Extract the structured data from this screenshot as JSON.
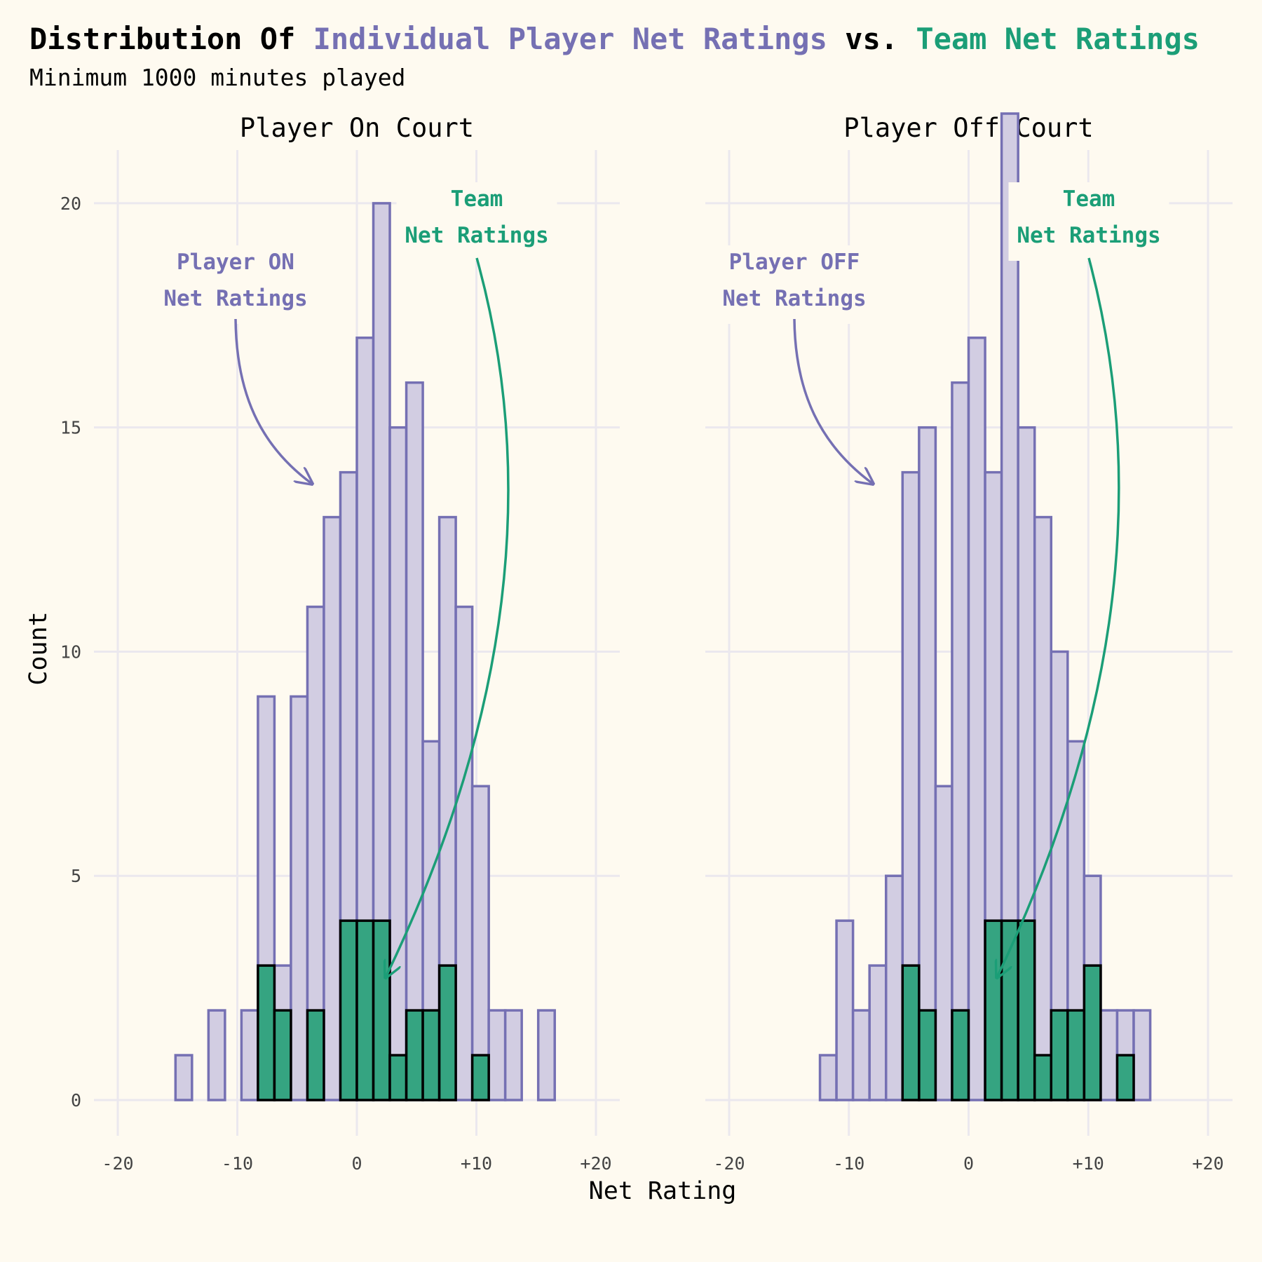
{
  "title": {
    "part1": "Distribution Of ",
    "part2": "Individual Player Net Ratings",
    "part3": " vs. ",
    "part4": "Team Net Ratings"
  },
  "subtitle": "Minimum 1000 minutes played",
  "colors": {
    "player_fill": "#d2cde2",
    "player_stroke": "#7570b3",
    "team_fill": "#35a481",
    "team_text": "#1b9e77",
    "background": "#fefaf0",
    "grid": "#ebe8ee"
  },
  "chart_data": [
    {
      "type": "histogram",
      "panel": "Player On Court",
      "xlabel": "Net Rating",
      "ylabel": "Count",
      "xlim": [
        -20,
        20
      ],
      "ylim": [
        0,
        22
      ],
      "x_ticks": [
        "-20",
        "-10",
        "0",
        "+10",
        "+20"
      ],
      "y_ticks": [
        "0",
        "5",
        "10",
        "15",
        "20"
      ],
      "grid": true,
      "bin_width": 1.379,
      "bin_centers": [
        -20,
        -18.621,
        -17.241,
        -15.862,
        -14.483,
        -13.103,
        -11.724,
        -10.345,
        -8.966,
        -7.586,
        -6.207,
        -4.828,
        -3.448,
        -2.069,
        -0.69,
        0.69,
        2.069,
        3.448,
        4.828,
        6.207,
        7.586,
        8.966,
        10.345,
        11.724,
        13.103,
        14.483,
        15.862,
        17.241,
        18.621,
        20
      ],
      "series": [
        {
          "name": "Player ON Net Ratings",
          "values": [
            0,
            0,
            0,
            0,
            1,
            0,
            2,
            0,
            2,
            9,
            3,
            9,
            11,
            13,
            14,
            17,
            20,
            15,
            16,
            8,
            13,
            11,
            7,
            2,
            2,
            0,
            2,
            0,
            0,
            0
          ]
        },
        {
          "name": "Team Net Ratings",
          "values": [
            0,
            0,
            0,
            0,
            0,
            0,
            0,
            0,
            0,
            3,
            2,
            0,
            2,
            0,
            4,
            4,
            4,
            1,
            2,
            2,
            3,
            0,
            1,
            0,
            0,
            0,
            0,
            0,
            0,
            0
          ]
        }
      ],
      "annotations": [
        {
          "lines": [
            "Player ON",
            "Net Ratings"
          ],
          "points_to": "Player ON Net Ratings"
        },
        {
          "lines": [
            "Team",
            "Net Ratings"
          ],
          "points_to": "Team Net Ratings"
        }
      ]
    },
    {
      "type": "histogram",
      "panel": "Player Off Court",
      "xlabel": "Net Rating",
      "ylabel": "Count",
      "xlim": [
        -20,
        20
      ],
      "ylim": [
        0,
        22
      ],
      "x_ticks": [
        "-20",
        "-10",
        "0",
        "+10",
        "+20"
      ],
      "y_ticks": [
        "0",
        "5",
        "10",
        "15",
        "20"
      ],
      "grid": true,
      "bin_width": 1.379,
      "bin_centers": [
        -20,
        -18.621,
        -17.241,
        -15.862,
        -14.483,
        -13.103,
        -11.724,
        -10.345,
        -8.966,
        -7.586,
        -6.207,
        -4.828,
        -3.448,
        -2.069,
        -0.69,
        0.69,
        2.069,
        3.448,
        4.828,
        6.207,
        7.586,
        8.966,
        10.345,
        11.724,
        13.103,
        14.483,
        15.862,
        17.241,
        18.621,
        20
      ],
      "series": [
        {
          "name": "Player OFF Net Ratings",
          "values": [
            0,
            0,
            0,
            0,
            0,
            0,
            1,
            4,
            2,
            3,
            5,
            14,
            15,
            7,
            16,
            17,
            14,
            22,
            15,
            13,
            10,
            8,
            5,
            2,
            2,
            2,
            0,
            0,
            0,
            0
          ]
        },
        {
          "name": "Team Net Ratings",
          "values": [
            0,
            0,
            0,
            0,
            0,
            0,
            0,
            0,
            0,
            0,
            0,
            3,
            2,
            0,
            2,
            0,
            4,
            4,
            4,
            1,
            2,
            2,
            3,
            0,
            1,
            0,
            0,
            0,
            0,
            0
          ]
        }
      ],
      "annotations": [
        {
          "lines": [
            "Player OFF",
            "Net Ratings"
          ],
          "points_to": "Player OFF Net Ratings"
        },
        {
          "lines": [
            "Team",
            "Net Ratings"
          ],
          "points_to": "Team Net Ratings"
        }
      ]
    }
  ]
}
